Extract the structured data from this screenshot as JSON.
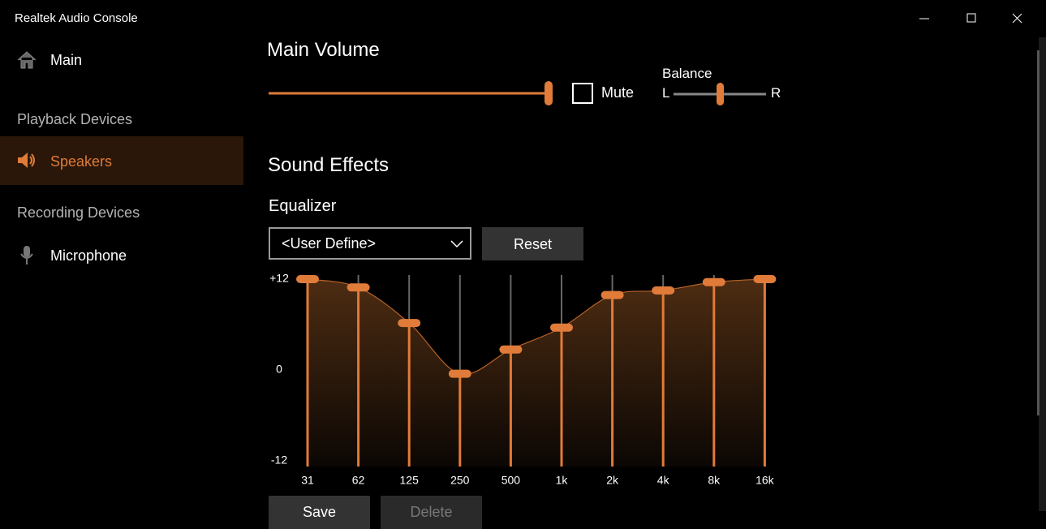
{
  "window": {
    "title": "Realtek Audio Console"
  },
  "sidebar": {
    "main": "Main",
    "sections": [
      {
        "heading": "Playback Devices",
        "items": [
          "Speakers"
        ]
      },
      {
        "heading": "Recording Devices",
        "items": [
          "Microphone"
        ]
      }
    ]
  },
  "main_volume": {
    "title": "Main Volume",
    "mute": "Mute",
    "balance": {
      "label": "Balance",
      "left": "L",
      "right": "R"
    }
  },
  "sound_effects": {
    "title": "Sound Effects",
    "equalizer": {
      "label": "Equalizer",
      "preset": "<User Define>",
      "reset": "Reset",
      "ylim": [
        -12,
        12
      ],
      "yticks": [
        {
          "value": 12,
          "label": "+12"
        },
        0,
        -12
      ],
      "bands": [
        "31",
        "62",
        "125",
        "250",
        "500",
        "1k",
        "2k",
        "4k",
        "8k",
        "16k"
      ],
      "values": [
        12,
        10.9,
        6.2,
        -0.5,
        2.7,
        5.6,
        9.9,
        10.5,
        11.6,
        12
      ],
      "save": "Save",
      "delete": "Delete"
    }
  }
}
